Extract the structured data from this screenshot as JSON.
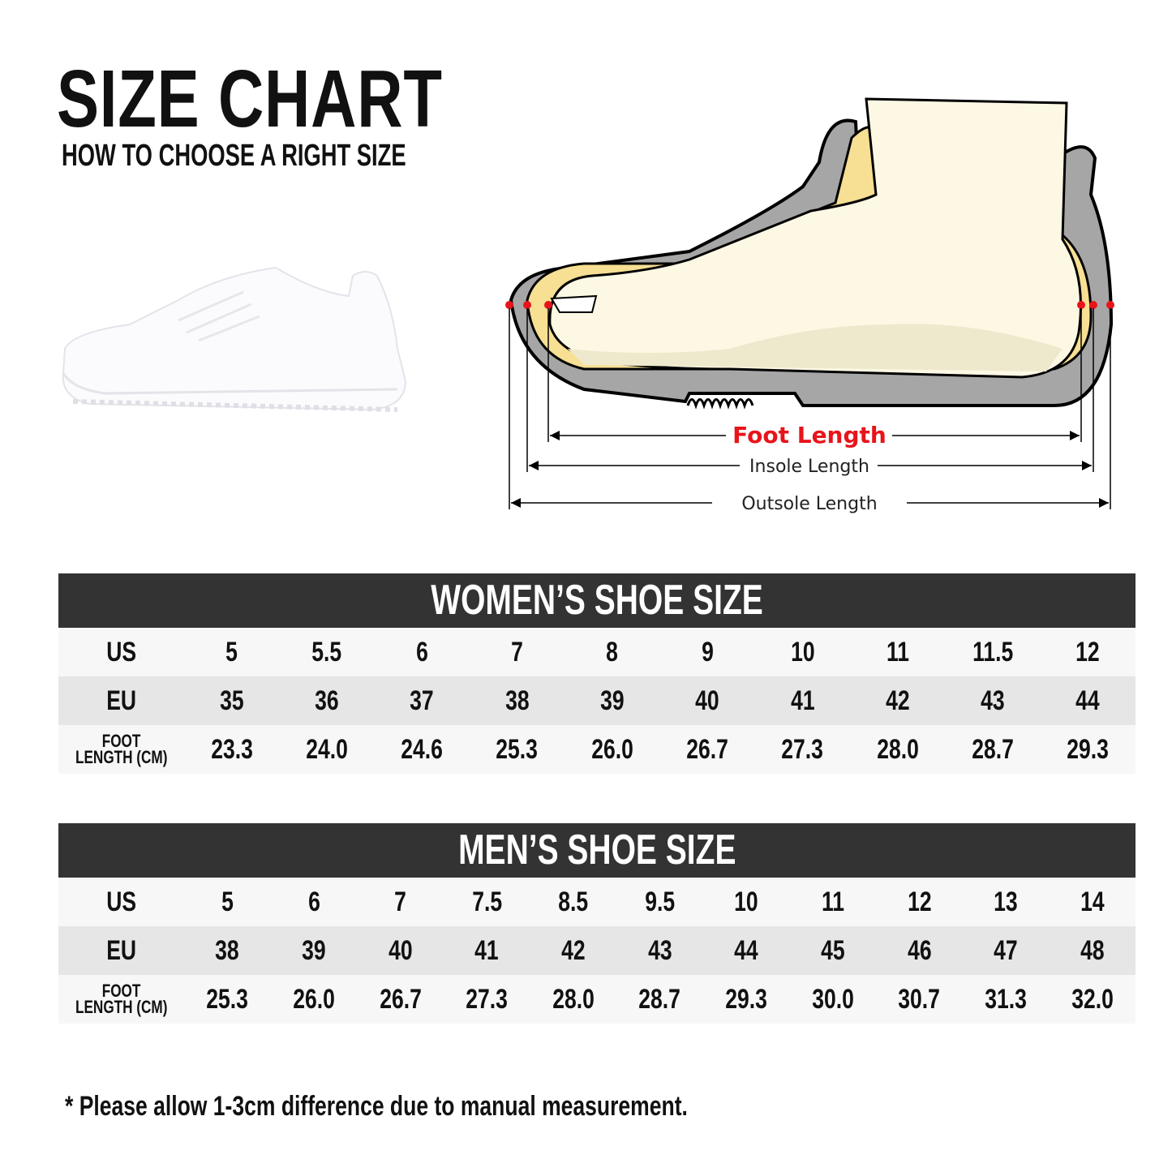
{
  "header": {
    "title": "SIZE CHART",
    "subtitle": "HOW TO CHOOSE A RIGHT SIZE"
  },
  "diagram": {
    "foot_length": "Foot Length",
    "insole_length": "Insole Length",
    "outsole_length": "Outsole Length",
    "colors": {
      "accent": "#e8141b",
      "outsole": "#a6a6a6",
      "insole": "#f7df93",
      "foot": "#fdf8e4"
    }
  },
  "women": {
    "title": "WOMEN’S SHOE SIZE",
    "labels": [
      "US",
      "EU",
      "FOOT",
      "LENGTH (CM)"
    ],
    "us": [
      "5",
      "5.5",
      "6",
      "7",
      "8",
      "9",
      "10",
      "11",
      "11.5",
      "12"
    ],
    "eu": [
      "35",
      "36",
      "37",
      "38",
      "39",
      "40",
      "41",
      "42",
      "43",
      "44"
    ],
    "cm": [
      "23.3",
      "24.0",
      "24.6",
      "25.3",
      "26.0",
      "26.7",
      "27.3",
      "28.0",
      "28.7",
      "29.3"
    ]
  },
  "men": {
    "title": "MEN’S SHOE SIZE",
    "labels": [
      "US",
      "EU",
      "FOOT",
      "LENGTH (CM)"
    ],
    "us": [
      "5",
      "6",
      "7",
      "7.5",
      "8.5",
      "9.5",
      "10",
      "11",
      "12",
      "13",
      "14"
    ],
    "eu": [
      "38",
      "39",
      "40",
      "41",
      "42",
      "43",
      "44",
      "45",
      "46",
      "47",
      "48"
    ],
    "cm": [
      "25.3",
      "26.0",
      "26.7",
      "27.3",
      "28.0",
      "28.7",
      "29.3",
      "30.0",
      "30.7",
      "31.3",
      "32.0"
    ]
  },
  "footnote": "* Please allow 1-3cm difference due to manual measurement."
}
